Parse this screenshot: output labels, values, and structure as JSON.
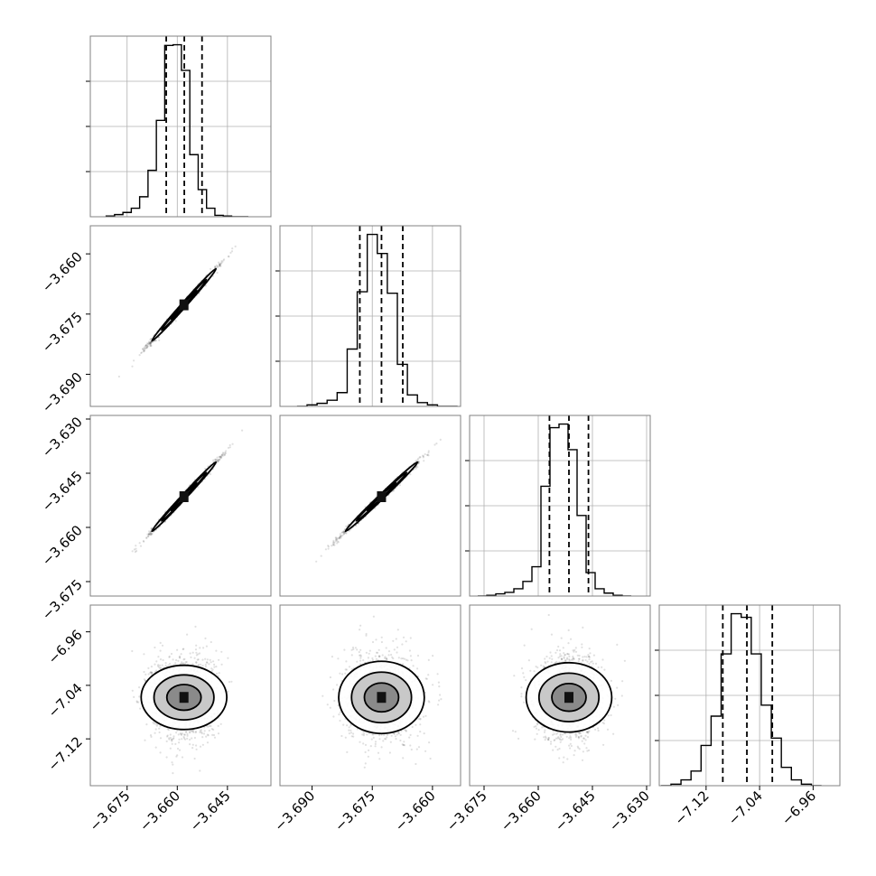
{
  "chart_data": [
    {
      "type": "histogram",
      "panel": "1-1",
      "xlim": [
        -3.686,
        -3.632
      ],
      "bins_center": [
        -3.68,
        -3.6775,
        -3.675,
        -3.6725,
        -3.67,
        -3.6675,
        -3.665,
        -3.6625,
        -3.66,
        -3.6575,
        -3.655,
        -3.6525,
        -3.65,
        -3.6475,
        -3.645,
        -3.6425,
        -3.64
      ],
      "counts": [
        1,
        3,
        6,
        12,
        28,
        65,
        135,
        240,
        241,
        205,
        87,
        38,
        12,
        2,
        1,
        0,
        0
      ],
      "quantiles": [
        -3.6633,
        -3.6579,
        -3.6526
      ],
      "grid": true
    },
    {
      "type": "histogram",
      "panel": "2-2",
      "xlim": [
        -3.698,
        -3.653
      ],
      "bins_center": [
        -3.6925,
        -3.69,
        -3.6875,
        -3.685,
        -3.6825,
        -3.68,
        -3.6775,
        -3.675,
        -3.6725,
        -3.67,
        -3.6675,
        -3.665,
        -3.6625,
        -3.66,
        -3.6575,
        -3.655
      ],
      "counts": [
        0,
        2,
        4,
        8,
        18,
        75,
        150,
        225,
        200,
        148,
        55,
        15,
        5,
        2,
        0,
        0
      ],
      "quantiles": [
        -3.6781,
        -3.6727,
        -3.6674
      ],
      "grid": true
    },
    {
      "type": "histogram",
      "panel": "3-3",
      "xlim": [
        -3.679,
        -3.629
      ],
      "bins_center": [
        -3.6755,
        -3.673,
        -3.6705,
        -3.668,
        -3.6655,
        -3.663,
        -3.6605,
        -3.658,
        -3.6555,
        -3.653,
        -3.6505,
        -3.648,
        -3.6455,
        -3.643,
        -3.6405,
        -3.638,
        -3.6355
      ],
      "counts": [
        0,
        1,
        3,
        5,
        10,
        20,
        40,
        150,
        230,
        235,
        200,
        110,
        32,
        10,
        4,
        1,
        0
      ],
      "quantiles": [
        -3.6569,
        -3.6515,
        -3.6461
      ],
      "grid": true
    },
    {
      "type": "histogram",
      "panel": "4-4",
      "xlim": [
        -7.19,
        -6.92
      ],
      "bins_center": [
        -7.18,
        -7.165,
        -7.15,
        -7.135,
        -7.12,
        -7.105,
        -7.09,
        -7.075,
        -7.06,
        -7.045,
        -7.03,
        -7.015,
        -7.0,
        -6.985,
        -6.97,
        -6.955
      ],
      "counts": [
        0,
        2,
        8,
        20,
        55,
        95,
        180,
        235,
        230,
        180,
        110,
        65,
        25,
        8,
        2,
        0
      ],
      "quantiles": [
        -7.095,
        -7.059,
        -7.021
      ],
      "grid": true
    },
    {
      "type": "scatter-contour",
      "panel": "2-1",
      "xlim": [
        -3.686,
        -3.632
      ],
      "ylim": [
        -3.698,
        -3.653
      ],
      "center": [
        -3.658,
        -3.6727
      ],
      "spread": [
        0.0048,
        0.0045
      ],
      "correlation": 0.995
    },
    {
      "type": "scatter-contour",
      "panel": "3-1",
      "xlim": [
        -3.686,
        -3.632
      ],
      "ylim": [
        -3.679,
        -3.629
      ],
      "center": [
        -3.658,
        -3.6515
      ],
      "spread": [
        0.0048,
        0.0048
      ],
      "correlation": 0.995
    },
    {
      "type": "scatter-contour",
      "panel": "3-2",
      "xlim": [
        -3.698,
        -3.653
      ],
      "ylim": [
        -3.679,
        -3.629
      ],
      "center": [
        -3.6727,
        -3.6515
      ],
      "spread": [
        0.0045,
        0.0048
      ],
      "correlation": 0.995
    },
    {
      "type": "scatter-contour",
      "panel": "4-1",
      "xlim": [
        -3.686,
        -3.632
      ],
      "ylim": [
        -7.19,
        -6.92
      ],
      "center": [
        -3.658,
        -7.058
      ],
      "spread": [
        0.0048,
        0.032
      ],
      "correlation": 0.0
    },
    {
      "type": "scatter-contour",
      "panel": "4-2",
      "xlim": [
        -3.698,
        -3.653
      ],
      "ylim": [
        -7.19,
        -6.92
      ],
      "center": [
        -3.6727,
        -7.058
      ],
      "spread": [
        0.0045,
        0.032
      ],
      "correlation": 0.0
    },
    {
      "type": "scatter-contour",
      "panel": "4-3",
      "xlim": [
        -3.679,
        -3.629
      ],
      "ylim": [
        -7.19,
        -6.92
      ],
      "center": [
        -3.6515,
        -7.058
      ],
      "spread": [
        0.0048,
        0.032
      ],
      "correlation": 0.0
    }
  ],
  "axis_ticks": {
    "p1": {
      "values": [
        -3.675,
        -3.66,
        -3.645
      ],
      "labels": [
        "−3.675",
        "−3.660",
        "−3.645"
      ]
    },
    "p2": {
      "values": [
        -3.69,
        -3.675,
        -3.66
      ],
      "labels": [
        "−3.690",
        "−3.675",
        "−3.660"
      ]
    },
    "p3": {
      "values": [
        -3.675,
        -3.66,
        -3.645,
        -3.63
      ],
      "labels": [
        "−3.675",
        "−3.660",
        "−3.645",
        "−3.630"
      ]
    },
    "p4": {
      "values": [
        -7.12,
        -7.04,
        -6.96
      ],
      "labels": [
        "−7.12",
        "−7.04",
        "−6.96"
      ]
    }
  },
  "style": {
    "line": "#000000",
    "grid": "#b0b0b0",
    "point": "#000000",
    "frame": "#808080"
  }
}
